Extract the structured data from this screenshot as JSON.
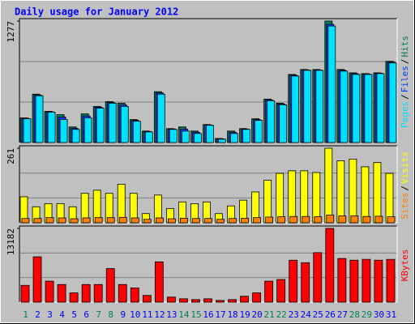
{
  "chart_data": [
    {
      "type": "bar",
      "title": "Daily usage for January 2012",
      "ylim": [
        0,
        1277
      ],
      "yticks": [
        1277
      ],
      "legend_separator": "/",
      "series": [
        {
          "name": "Hits",
          "color": "#00805c",
          "values": [
            259,
            509,
            328,
            293,
            164,
            302,
            380,
            431,
            414,
            242,
            121,
            535,
            147,
            164,
            121,
            190,
            43,
            121,
            147,
            250,
            457,
            414,
            716,
            768,
            768,
            1277,
            768,
            733,
            725,
            733,
            854
          ]
        },
        {
          "name": "Files",
          "color": "#0040ff",
          "values": [
            255,
            500,
            324,
            268,
            150,
            280,
            371,
            422,
            397,
            233,
            116,
            522,
            142,
            142,
            108,
            185,
            39,
            108,
            142,
            241,
            448,
            405,
            707,
            763,
            763,
            1243,
            759,
            724,
            720,
            729,
            845
          ]
        },
        {
          "name": "Pages",
          "color": "#00e0ff",
          "values": [
            250,
            492,
            319,
            242,
            138,
            259,
            362,
            414,
            380,
            224,
            112,
            509,
            138,
            121,
            95,
            181,
            35,
            95,
            138,
            233,
            440,
            397,
            699,
            759,
            759,
            1225,
            751,
            716,
            716,
            725,
            837
          ]
        }
      ]
    },
    {
      "type": "bar",
      "ylim": [
        0,
        261
      ],
      "yticks": [
        261
      ],
      "legend_separator": "/",
      "series": [
        {
          "name": "Visits",
          "color": "#ffff00",
          "values": [
            91,
            56,
            67,
            67,
            56,
            103,
            114,
            103,
            135,
            103,
            32,
            97,
            50,
            73,
            67,
            73,
            32,
            59,
            79,
            108,
            149,
            173,
            182,
            182,
            176,
            261,
            217,
            223,
            196,
            211,
            173
          ]
        },
        {
          "name": "Sites",
          "color": "#ff8000",
          "values": [
            15,
            15,
            18,
            17,
            14,
            17,
            18,
            18,
            19,
            17,
            12,
            17,
            14,
            16,
            15,
            15,
            12,
            15,
            16,
            18,
            20,
            21,
            22,
            22,
            21,
            27,
            24,
            24,
            22,
            23,
            21
          ]
        }
      ]
    },
    {
      "type": "bar",
      "ylim": [
        0,
        13182
      ],
      "yticks": [
        13182
      ],
      "categories": [
        "1",
        "2",
        "3",
        "4",
        "5",
        "6",
        "7",
        "8",
        "9",
        "10",
        "11",
        "12",
        "13",
        "14",
        "15",
        "16",
        "17",
        "18",
        "19",
        "20",
        "21",
        "22",
        "23",
        "24",
        "25",
        "26",
        "27",
        "28",
        "29",
        "30",
        "31"
      ],
      "category_colors": [
        "#00805c",
        "#0000ff",
        "#0000ff",
        "#0000ff",
        "#0000ff",
        "#0000ff",
        "#00805c",
        "#00805c",
        "#0000ff",
        "#0000ff",
        "#0000ff",
        "#0000ff",
        "#0000ff",
        "#00805c",
        "#00805c",
        "#0000ff",
        "#0000ff",
        "#0000ff",
        "#0000ff",
        "#0000ff",
        "#00805c",
        "#00805c",
        "#0000ff",
        "#0000ff",
        "#0000ff",
        "#0000ff",
        "#0000ff",
        "#00805c",
        "#00805c",
        "#0000ff",
        "#0000ff"
      ],
      "series": [
        {
          "name": "KBytes",
          "color": "#ff0000",
          "values": [
            3000,
            8100,
            3750,
            3150,
            1650,
            3150,
            3150,
            6000,
            3150,
            2550,
            1200,
            7200,
            900,
            600,
            450,
            600,
            300,
            450,
            1050,
            1650,
            3750,
            4050,
            7500,
            7050,
            8850,
            13182,
            7800,
            7500,
            7650,
            7500,
            7650
          ]
        }
      ]
    }
  ]
}
